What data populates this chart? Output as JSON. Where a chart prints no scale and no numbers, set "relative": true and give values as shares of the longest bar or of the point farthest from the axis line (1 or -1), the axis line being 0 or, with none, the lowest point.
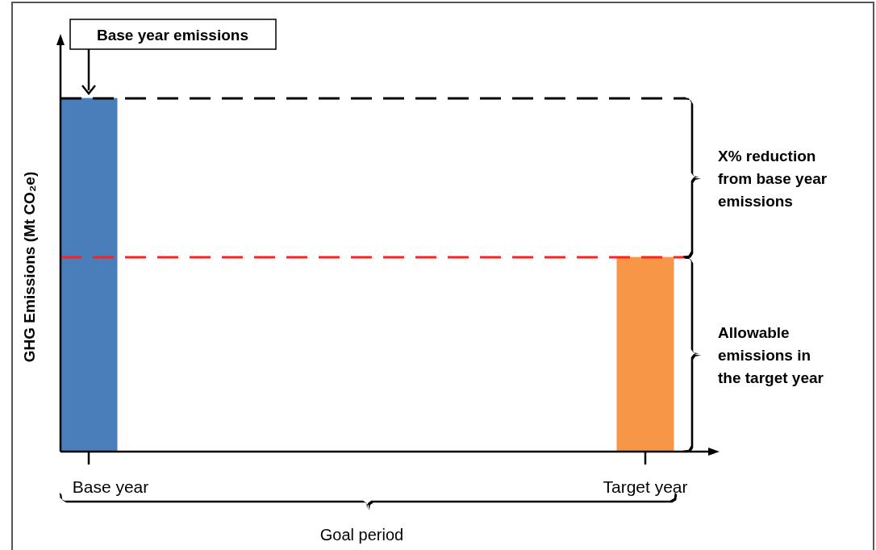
{
  "chart_data": {
    "type": "bar",
    "relative": true,
    "ylabel": "GHG Emissions (Mt CO₂e)",
    "categories": [
      "Base year",
      "Target year"
    ],
    "values": [
      1,
      0.55
    ],
    "colors": [
      "#4a7ebb",
      "#f79646"
    ],
    "ref_lines": [
      {
        "axis": "y",
        "value": 1,
        "color": "#000000",
        "line_style": "dashed"
      },
      {
        "axis": "y",
        "value": 0.55,
        "color": "#ff2020",
        "line_style": "dashed"
      }
    ],
    "annotations": [
      "Base year emissions",
      "X% reduction from base year emissions",
      "Allowable emissions in the target year",
      "Goal period"
    ]
  }
}
